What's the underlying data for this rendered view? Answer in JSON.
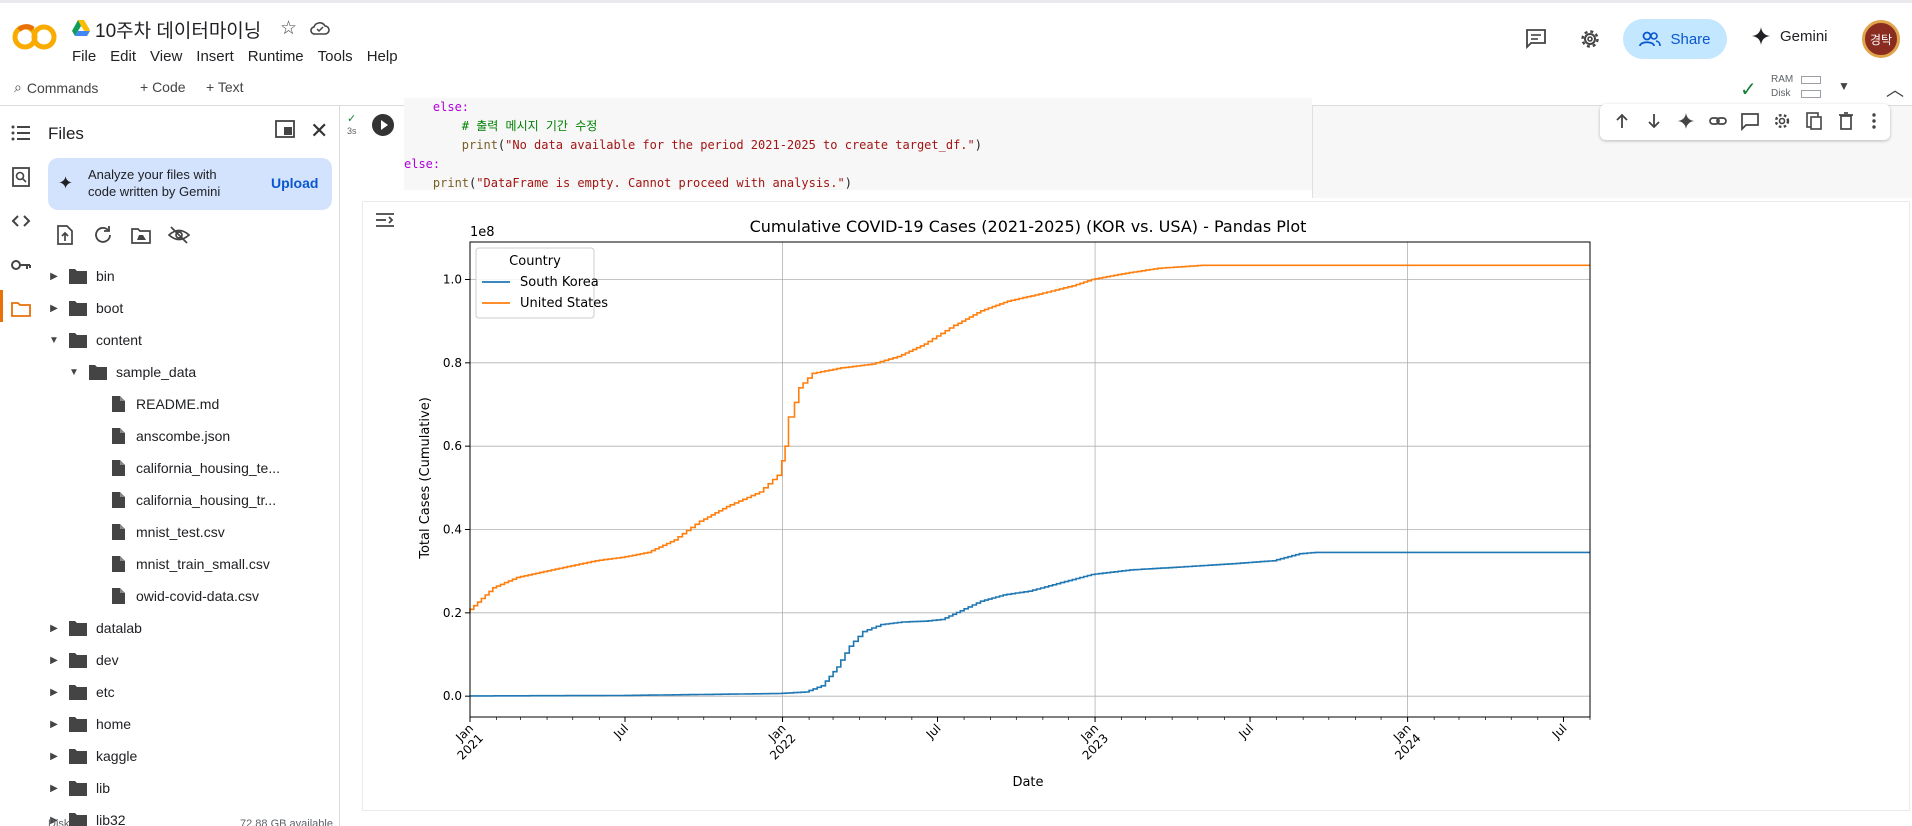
{
  "app": {
    "title": "10주차 데이터마이닝",
    "menu": [
      "File",
      "Edit",
      "View",
      "Insert",
      "Runtime",
      "Tools",
      "Help"
    ],
    "share_label": "Share",
    "gemini_label": "Gemini",
    "avatar_text": "경탁"
  },
  "toolbar": {
    "commands_label": "Commands",
    "add_code_label": "+ Code",
    "add_text_label": "+ Text",
    "ram_label": "RAM",
    "disk_label": "Disk"
  },
  "files_panel": {
    "title": "Files",
    "gemini_card_text": "Analyze your files with code written by Gemini",
    "upload_label": "Upload",
    "tree": [
      {
        "name": "bin",
        "type": "folder",
        "depth": 0,
        "expanded": false
      },
      {
        "name": "boot",
        "type": "folder",
        "depth": 0,
        "expanded": false
      },
      {
        "name": "content",
        "type": "folder",
        "depth": 0,
        "expanded": true
      },
      {
        "name": "sample_data",
        "type": "folder",
        "depth": 1,
        "expanded": true
      },
      {
        "name": "README.md",
        "type": "file",
        "depth": 2
      },
      {
        "name": "anscombe.json",
        "type": "file",
        "depth": 2
      },
      {
        "name": "california_housing_te...",
        "type": "file",
        "depth": 2
      },
      {
        "name": "california_housing_tr...",
        "type": "file",
        "depth": 2
      },
      {
        "name": "mnist_test.csv",
        "type": "file",
        "depth": 2
      },
      {
        "name": "mnist_train_small.csv",
        "type": "file",
        "depth": 2
      },
      {
        "name": "owid-covid-data.csv",
        "type": "file",
        "depth": 2
      },
      {
        "name": "datalab",
        "type": "folder",
        "depth": 0,
        "expanded": false
      },
      {
        "name": "dev",
        "type": "folder",
        "depth": 0,
        "expanded": false
      },
      {
        "name": "etc",
        "type": "folder",
        "depth": 0,
        "expanded": false
      },
      {
        "name": "home",
        "type": "folder",
        "depth": 0,
        "expanded": false
      },
      {
        "name": "kaggle",
        "type": "folder",
        "depth": 0,
        "expanded": false
      },
      {
        "name": "lib",
        "type": "folder",
        "depth": 0,
        "expanded": false
      },
      {
        "name": "lib32",
        "type": "folder",
        "depth": 0,
        "expanded": false
      }
    ],
    "disk_label": "Disk",
    "disk_available": "72.88 GB available"
  },
  "cell": {
    "exec_time": "3s",
    "code_lines": [
      {
        "indent": "    ",
        "parts": [
          {
            "t": "else:",
            "c": "kw"
          }
        ]
      },
      {
        "indent": "        ",
        "parts": [
          {
            "t": "# 출력 메시지 기간 수정",
            "c": "cm"
          }
        ]
      },
      {
        "indent": "        ",
        "parts": [
          {
            "t": "print",
            "c": "fn"
          },
          {
            "t": "(",
            "c": "pl"
          },
          {
            "t": "\"No data available for the period 2021-2025 to create target_df.\"",
            "c": "st"
          },
          {
            "t": ")",
            "c": "pl"
          }
        ]
      },
      {
        "indent": "",
        "parts": [
          {
            "t": "else:",
            "c": "kw"
          }
        ]
      },
      {
        "indent": "    ",
        "parts": [
          {
            "t": "print",
            "c": "fn"
          },
          {
            "t": "(",
            "c": "pl"
          },
          {
            "t": "\"DataFrame is empty. Cannot proceed with analysis.\"",
            "c": "st"
          },
          {
            "t": ")",
            "c": "pl"
          }
        ]
      }
    ]
  },
  "chart_data": {
    "type": "line",
    "title": "Cumulative COVID-19 Cases (2021-2025) (KOR vs. USA) - Pandas Plot",
    "xlabel": "Date",
    "ylabel": "Total Cases (Cumulative)",
    "y_offset_label": "1e8",
    "ylim": [
      -0.05,
      1.09
    ],
    "xlim": [
      "2021-01-01",
      "2024-08-01"
    ],
    "yticks": [
      0.0,
      0.2,
      0.4,
      0.6,
      0.8,
      1.0
    ],
    "ytick_labels": [
      "0.0",
      "0.2",
      "0.4",
      "0.6",
      "0.8",
      "1.0"
    ],
    "xticks": [
      {
        "date": "2021-01-01",
        "label": [
          "Jan",
          "2021"
        ],
        "major": true
      },
      {
        "date": "2021-07-01",
        "label": [
          "Jul"
        ],
        "major": false
      },
      {
        "date": "2022-01-01",
        "label": [
          "Jan",
          "2022"
        ],
        "major": true
      },
      {
        "date": "2022-07-01",
        "label": [
          "Jul"
        ],
        "major": false
      },
      {
        "date": "2023-01-01",
        "label": [
          "Jan",
          "2023"
        ],
        "major": true
      },
      {
        "date": "2023-07-01",
        "label": [
          "Jul"
        ],
        "major": false
      },
      {
        "date": "2024-01-01",
        "label": [
          "Jan",
          "2024"
        ],
        "major": true
      },
      {
        "date": "2024-07-01",
        "label": [
          "Jul"
        ],
        "major": false
      }
    ],
    "grid": true,
    "legend": {
      "title": "Country",
      "placement": "top-left"
    },
    "series": [
      {
        "name": "South Korea",
        "color": "#1f77b4",
        "points": [
          [
            "2021-01-01",
            0.0006
          ],
          [
            "2021-07-01",
            0.0016
          ],
          [
            "2021-12-31",
            0.0064
          ],
          [
            "2022-02-01",
            0.01
          ],
          [
            "2022-02-20",
            0.025
          ],
          [
            "2022-03-10",
            0.07
          ],
          [
            "2022-03-25",
            0.12
          ],
          [
            "2022-04-10",
            0.155
          ],
          [
            "2022-05-01",
            0.172
          ],
          [
            "2022-05-25",
            0.178
          ],
          [
            "2022-06-20",
            0.18
          ],
          [
            "2022-07-10",
            0.184
          ],
          [
            "2022-08-01",
            0.205
          ],
          [
            "2022-08-25",
            0.228
          ],
          [
            "2022-09-20",
            0.243
          ],
          [
            "2022-10-20",
            0.252
          ],
          [
            "2022-12-01",
            0.275
          ],
          [
            "2023-01-01",
            0.292
          ],
          [
            "2023-02-15",
            0.303
          ],
          [
            "2023-04-15",
            0.31
          ],
          [
            "2023-06-15",
            0.318
          ],
          [
            "2023-08-01",
            0.325
          ],
          [
            "2023-09-01",
            0.342
          ],
          [
            "2023-09-20",
            0.345
          ],
          [
            "2024-08-01",
            0.345
          ]
        ]
      },
      {
        "name": "United States",
        "color": "#ff7f0e",
        "points": [
          [
            "2021-01-01",
            0.2
          ],
          [
            "2021-02-01",
            0.26
          ],
          [
            "2021-03-01",
            0.285
          ],
          [
            "2021-04-15",
            0.305
          ],
          [
            "2021-06-01",
            0.325
          ],
          [
            "2021-07-01",
            0.333
          ],
          [
            "2021-08-01",
            0.345
          ],
          [
            "2021-09-01",
            0.375
          ],
          [
            "2021-10-01",
            0.42
          ],
          [
            "2021-11-01",
            0.455
          ],
          [
            "2021-12-10",
            0.49
          ],
          [
            "2021-12-31",
            0.53
          ],
          [
            "2022-01-08",
            0.6
          ],
          [
            "2022-01-15",
            0.67
          ],
          [
            "2022-01-25",
            0.74
          ],
          [
            "2022-02-10",
            0.775
          ],
          [
            "2022-03-15",
            0.788
          ],
          [
            "2022-04-20",
            0.797
          ],
          [
            "2022-05-20",
            0.815
          ],
          [
            "2022-06-20",
            0.845
          ],
          [
            "2022-07-25",
            0.89
          ],
          [
            "2022-08-25",
            0.925
          ],
          [
            "2022-09-25",
            0.948
          ],
          [
            "2022-11-01",
            0.965
          ],
          [
            "2022-12-10",
            0.985
          ],
          [
            "2023-01-01",
            1.0
          ],
          [
            "2023-02-10",
            1.015
          ],
          [
            "2023-03-20",
            1.027
          ],
          [
            "2023-05-10",
            1.034
          ],
          [
            "2024-08-01",
            1.034
          ]
        ]
      }
    ]
  }
}
